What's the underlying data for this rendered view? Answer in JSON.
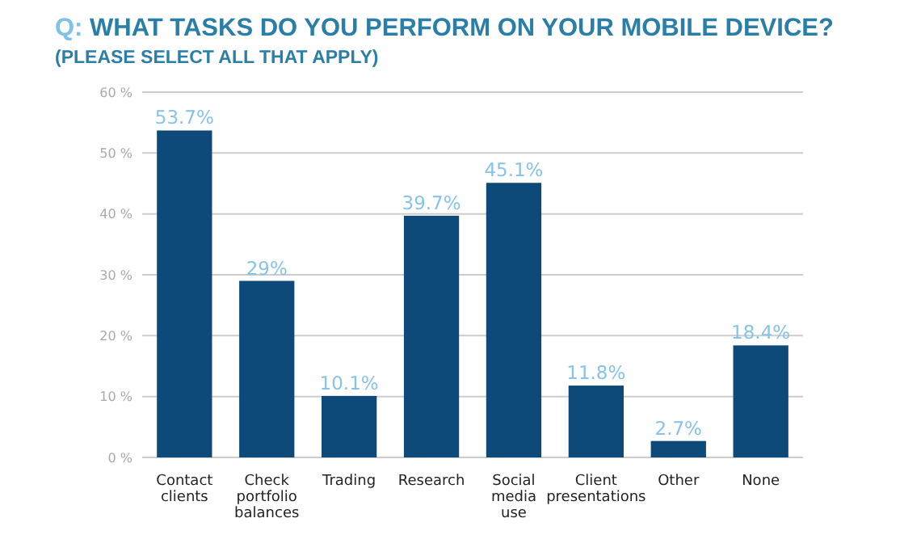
{
  "chart_data": {
    "type": "bar",
    "title": "Q: WHAT TASKS DO YOU PERFORM ON YOUR MOBILE DEVICE?",
    "subtitle": "(PLEASE SELECT ALL THAT APPLY)",
    "categories": [
      "Contact clients",
      "Check portfolio balances",
      "Trading",
      "Research",
      "Social media use",
      "Client presentations",
      "Other",
      "None"
    ],
    "values": [
      53.7,
      29,
      10.1,
      39.7,
      45.1,
      11.8,
      2.7,
      18.4
    ],
    "value_labels": [
      "53.7%",
      "29%",
      "10.1%",
      "39.7%",
      "45.1%",
      "11.8%",
      "2.7%",
      "18.4%"
    ],
    "color": "#0d4a7a",
    "ylim": [
      0,
      60
    ],
    "yticks": [
      {
        "value": 0,
        "label": "0 %"
      },
      {
        "value": 10,
        "label": "10 %"
      },
      {
        "value": 20,
        "label": "20 %"
      },
      {
        "value": 30,
        "label": "30 %"
      },
      {
        "value": 40,
        "label": "40 %"
      },
      {
        "value": 50,
        "label": "50 %"
      },
      {
        "value": 60,
        "label": "60 %"
      }
    ],
    "grid": "y"
  }
}
